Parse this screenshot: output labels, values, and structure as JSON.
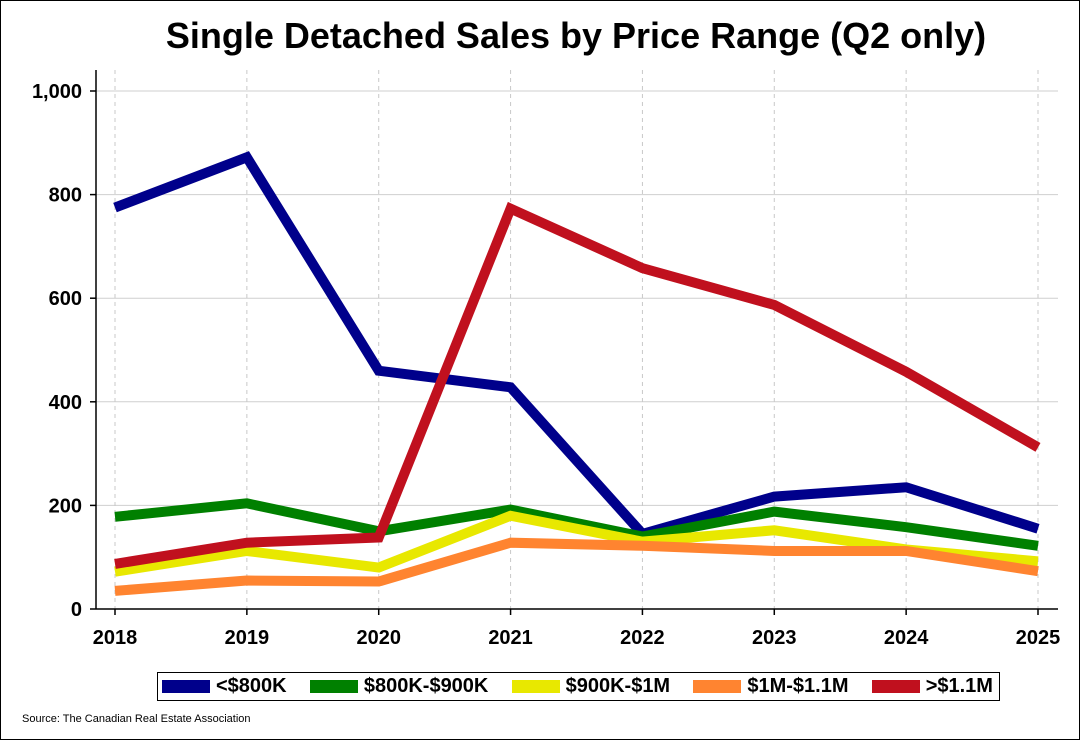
{
  "chart_data": {
    "type": "line",
    "title": "Single Detached Sales by Price Range (Q2 only)",
    "x": [
      "2018",
      "2019",
      "2020",
      "2021",
      "2022",
      "2023",
      "2024",
      "2025"
    ],
    "y_ticks": [
      "0",
      "200",
      "400",
      "600",
      "800",
      "1,000"
    ],
    "ylim": [
      0,
      1000
    ],
    "grid": true,
    "legend_position": "bottom",
    "series": [
      {
        "name": "<$800K",
        "color": "#00008B",
        "values": [
          775,
          872,
          460,
          428,
          145,
          217,
          235,
          155
        ]
      },
      {
        "name": "$800K-$900K",
        "color": "#008000",
        "values": [
          178,
          204,
          150,
          192,
          140,
          188,
          158,
          122
        ]
      },
      {
        "name": "$900K-$1M",
        "color": "#E8E800",
        "values": [
          72,
          112,
          80,
          180,
          130,
          152,
          115,
          92
        ]
      },
      {
        "name": "$1M-$1.1M",
        "color": "#FF8430",
        "values": [
          35,
          55,
          53,
          128,
          122,
          112,
          112,
          73
        ]
      },
      {
        "name": ">$1.1M",
        "color": "#C0101E",
        "values": [
          87,
          128,
          138,
          773,
          658,
          587,
          458,
          312
        ]
      }
    ],
    "source": "Source: The Canadian Real Estate Association"
  }
}
